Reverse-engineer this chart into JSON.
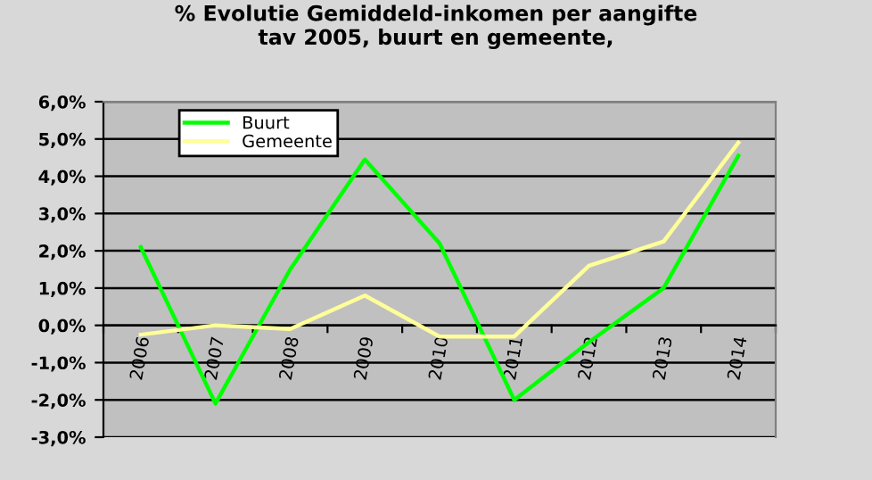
{
  "chart_data": {
    "type": "line",
    "title": "% Evolutie Gemiddeld-inkomen per aangifte\ntav 2005, buurt en gemeente,",
    "categories": [
      "2006",
      "2007",
      "2008",
      "2009",
      "2010",
      "2011",
      "2012",
      "2013",
      "2014"
    ],
    "series": [
      {
        "name": "Buurt",
        "color": "#00ff00",
        "values": [
          2.1,
          -2.1,
          1.5,
          4.45,
          2.2,
          -2.0,
          -0.45,
          1.0,
          4.55
        ]
      },
      {
        "name": "Gemeente",
        "color": "#ffff99",
        "values": [
          -0.25,
          0.0,
          -0.1,
          0.8,
          -0.3,
          -0.3,
          1.6,
          2.25,
          4.9
        ]
      }
    ],
    "ylim": [
      -3,
      6
    ],
    "yticks": [
      {
        "value": -3,
        "label": "-3,0%"
      },
      {
        "value": -2,
        "label": "-2,0%"
      },
      {
        "value": -1,
        "label": "-1,0%"
      },
      {
        "value": 0,
        "label": "0,0%"
      },
      {
        "value": 1,
        "label": "1,0%"
      },
      {
        "value": 2,
        "label": "2,0%"
      },
      {
        "value": 3,
        "label": "3,0%"
      },
      {
        "value": 4,
        "label": "4,0%"
      },
      {
        "value": 5,
        "label": "5,0%"
      },
      {
        "value": 6,
        "label": "6,0%"
      }
    ],
    "grid": "y",
    "legend": "top left",
    "marker": "none",
    "line_style": "solid"
  }
}
